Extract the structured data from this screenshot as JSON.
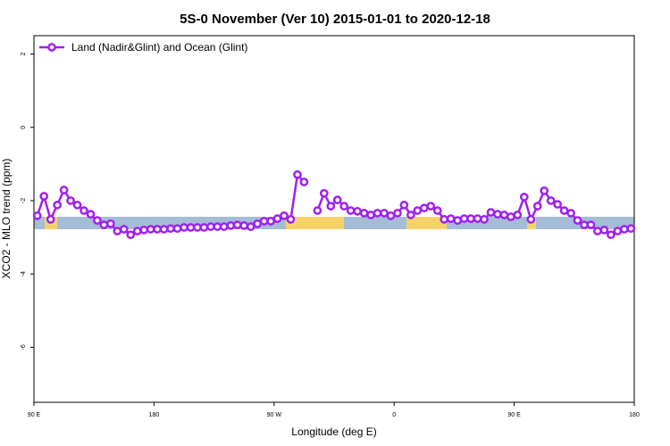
{
  "chart_data": {
    "type": "line",
    "title": "5S-0 November (Ver 10)   2015-01-01 to 2020-12-18",
    "x_label": "Longitude (deg E)",
    "y_label": "XCO2 - MLO trend (ppm)",
    "x": [
      92.5,
      97.5,
      102.5,
      107.5,
      112.5,
      117.5,
      122.5,
      127.5,
      132.5,
      137.5,
      142.5,
      147.5,
      152.5,
      157.5,
      162.5,
      167.5,
      172.5,
      177.5,
      182.5,
      187.5,
      192.5,
      197.5,
      202.5,
      207.5,
      212.5,
      217.5,
      222.5,
      227.5,
      232.5,
      237.5,
      242.5,
      247.5,
      252.5,
      257.5,
      262.5,
      267.5,
      272.5,
      277.5,
      282.5,
      287.5,
      292.5,
      297.5,
      302.5,
      307.5,
      312.5,
      317.5,
      322.5,
      327.5,
      332.5,
      337.5,
      342.5,
      347.5,
      352.5,
      357.5,
      362.5,
      367.5,
      372.5,
      377.5,
      382.5,
      387.5,
      392.5,
      397.5,
      402.5,
      407.5,
      412.5,
      417.5,
      422.5,
      427.5,
      432.5,
      437.5,
      442.5,
      447.5,
      452.5,
      457.5,
      462.5,
      467.5,
      472.5,
      477.5,
      482.5,
      487.5,
      492.5,
      497.5,
      502.5,
      507.5,
      512.5,
      517.5,
      522.5,
      527.5,
      532.5,
      537.5
    ],
    "series": [
      {
        "name": "Land (Nadir&Glint) and Ocean (Glint)",
        "color": "#a020f0",
        "values": [
          -2.41,
          -1.88,
          -2.51,
          -2.12,
          -1.71,
          -2.0,
          -2.12,
          -2.27,
          -2.37,
          -2.54,
          -2.66,
          -2.63,
          -2.83,
          -2.78,
          -2.93,
          -2.83,
          -2.8,
          -2.78,
          -2.78,
          -2.78,
          -2.76,
          -2.76,
          -2.73,
          -2.73,
          -2.73,
          -2.73,
          -2.71,
          -2.71,
          -2.71,
          -2.68,
          -2.66,
          -2.68,
          -2.71,
          -2.63,
          -2.56,
          -2.56,
          -2.49,
          -2.41,
          -2.51,
          -1.29,
          -1.49,
          null,
          -2.27,
          -1.8,
          -2.15,
          -1.98,
          -2.15,
          -2.27,
          -2.29,
          -2.34,
          -2.39,
          -2.34,
          -2.34,
          -2.41,
          -2.34,
          -2.12,
          -2.39,
          -2.27,
          -2.2,
          -2.15,
          -2.27,
          -2.51,
          -2.49,
          -2.54,
          -2.49,
          -2.49,
          -2.49,
          -2.51,
          -2.32,
          -2.37,
          -2.39,
          -2.44,
          -2.39,
          -1.9,
          -2.51,
          -2.15,
          -1.73,
          -2.0,
          -2.1,
          -2.27,
          -2.34,
          -2.54,
          -2.66,
          -2.66,
          -2.83,
          -2.8,
          -2.93,
          -2.83,
          -2.78,
          -2.76
        ]
      }
    ],
    "xlim": [
      90,
      540
    ],
    "xticks": [
      {
        "value": 90,
        "label": "90 E"
      },
      180,
      {
        "value": 270,
        "label": "90 W"
      },
      {
        "value": 360,
        "label": "0"
      },
      {
        "value": 450,
        "label": "90 E"
      },
      {
        "value": 540,
        "label": "180"
      }
    ],
    "ylim": [
      -7.5,
      2.5
    ],
    "yticks": [
      2,
      0,
      -2,
      -4,
      -6
    ],
    "legend": "top-left"
  }
}
